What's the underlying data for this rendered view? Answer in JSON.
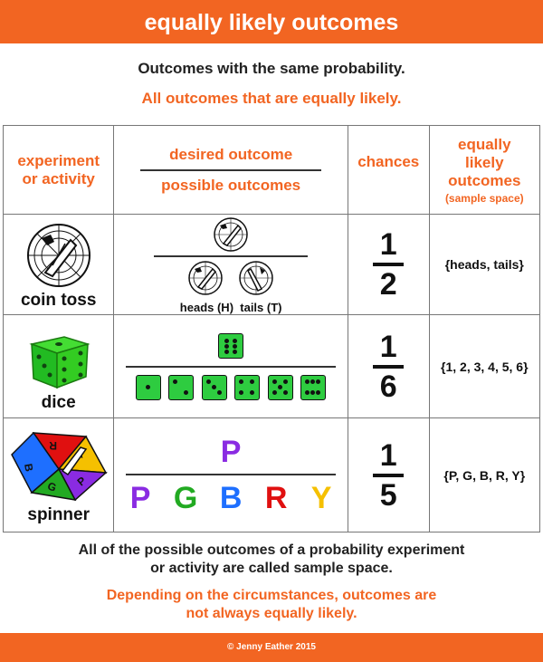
{
  "title": "equally likely outcomes",
  "subtitle": "Outcomes with the same probability.",
  "subtitle2": "All outcomes that are equally likely.",
  "headers": {
    "experiment": "experiment\nor activity",
    "desired": "desired outcome",
    "possible": "possible outcomes",
    "chances": "chances",
    "equally": "equally\nlikely\noutcomes",
    "sample_space": "(sample space)"
  },
  "rows": [
    {
      "label": "coin toss",
      "heads": "heads (H)",
      "tails": "tails (T)",
      "num": "1",
      "den": "2",
      "space": "{heads, tails}"
    },
    {
      "label": "dice",
      "num": "1",
      "den": "6",
      "space": "{1, 2, 3, 4, 5, 6}"
    },
    {
      "label": "spinner",
      "desired": "P",
      "outcomes": [
        "P",
        "G",
        "B",
        "R",
        "Y"
      ],
      "outcome_colors": [
        "#8a2be2",
        "#22aa22",
        "#1e6fff",
        "#e01010",
        "#f5c000"
      ],
      "desired_color": "#8a2be2",
      "num": "1",
      "den": "5",
      "space": "{P, G, B, R, Y}"
    }
  ],
  "footer_text1": "All of the possible outcomes of a probability experiment\nor activity are called sample space.",
  "footer_text2": "Depending on the circumstances, outcomes are\nnot always equally likely.",
  "copyright": "© Jenny Eather 2015",
  "colors": {
    "accent": "#f26522",
    "dice": "#2ecc40"
  }
}
